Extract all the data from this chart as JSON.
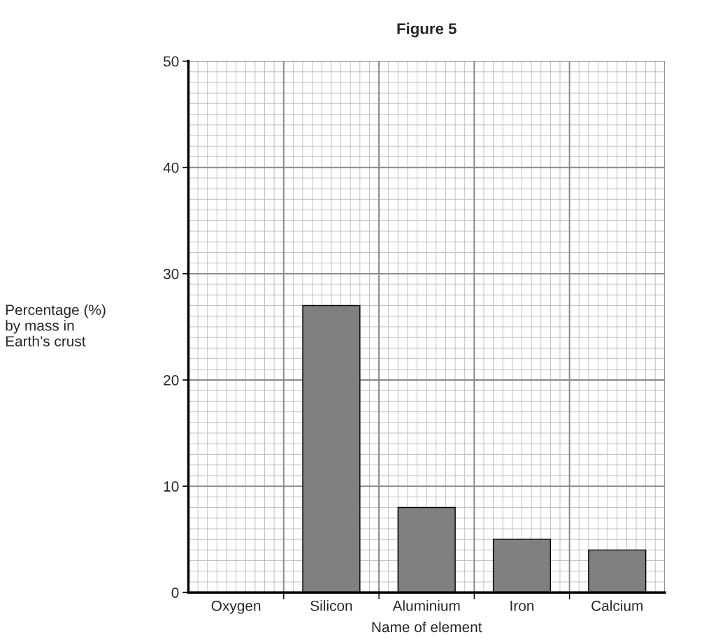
{
  "chart_data": {
    "type": "bar",
    "title": "Figure 5",
    "categories": [
      "Oxygen",
      "Silicon",
      "Aluminium",
      "Iron",
      "Calcium"
    ],
    "values": [
      null,
      27,
      8,
      5,
      4
    ],
    "color": "#808083",
    "xlabel": "Name of element",
    "ylabel": "Percentage (%)\nby mass in\nEarth’s crust",
    "ylim": [
      0,
      50
    ],
    "yticks": [
      0,
      10,
      20,
      30,
      40,
      50
    ],
    "grid": true
  }
}
